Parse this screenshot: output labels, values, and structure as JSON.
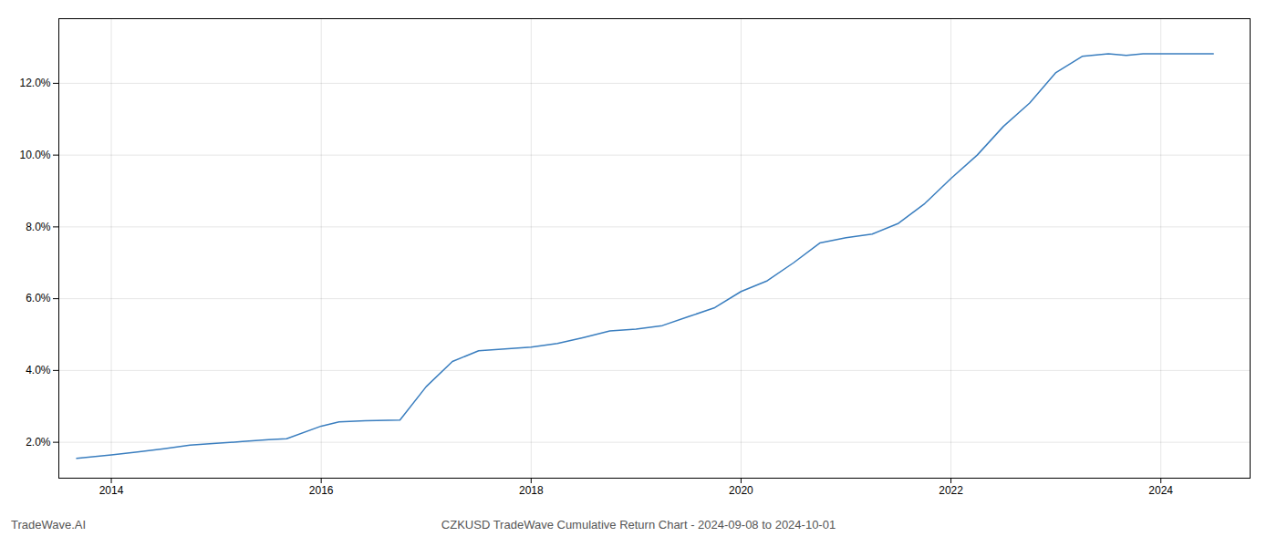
{
  "chart_data": {
    "type": "line",
    "title": "CZKUSD TradeWave Cumulative Return Chart - 2024-09-08 to 2024-10-01",
    "annotations": [
      "TradeWave.AI"
    ],
    "x": [
      2013.67,
      2014.0,
      2014.25,
      2014.5,
      2014.75,
      2015.0,
      2015.25,
      2015.5,
      2015.67,
      2016.0,
      2016.17,
      2016.42,
      2016.75,
      2017.0,
      2017.25,
      2017.5,
      2018.0,
      2018.25,
      2018.5,
      2018.75,
      2019.0,
      2019.25,
      2019.5,
      2019.75,
      2020.0,
      2020.25,
      2020.5,
      2020.75,
      2021.0,
      2021.25,
      2021.5,
      2021.75,
      2022.0,
      2022.25,
      2022.5,
      2022.75,
      2023.0,
      2023.25,
      2023.5,
      2023.67,
      2023.83,
      2024.0,
      2024.5
    ],
    "values": [
      1.55,
      1.65,
      1.73,
      1.82,
      1.92,
      1.97,
      2.02,
      2.07,
      2.1,
      2.45,
      2.57,
      2.6,
      2.62,
      3.55,
      4.25,
      4.55,
      4.65,
      4.75,
      4.92,
      5.1,
      5.15,
      5.25,
      5.5,
      5.75,
      6.2,
      6.5,
      7.0,
      7.55,
      7.7,
      7.8,
      8.1,
      8.65,
      9.35,
      10.0,
      10.8,
      11.45,
      12.3,
      12.75,
      12.82,
      12.78,
      12.82,
      12.82,
      12.82
    ],
    "color": "#3a7ebf",
    "xlim": [
      2013.5,
      2024.85
    ],
    "xticks": [
      2014,
      2016,
      2018,
      2020,
      2022,
      2024
    ],
    "ylim": [
      1.0,
      13.8
    ],
    "yticks": [
      {
        "value": 2.0,
        "label": "2.0%"
      },
      {
        "value": 4.0,
        "label": "4.0%"
      },
      {
        "value": 6.0,
        "label": "6.0%"
      },
      {
        "value": 8.0,
        "label": "8.0%"
      },
      {
        "value": 10.0,
        "label": "10.0%"
      },
      {
        "value": 12.0,
        "label": "12.0%"
      }
    ],
    "grid": true
  }
}
